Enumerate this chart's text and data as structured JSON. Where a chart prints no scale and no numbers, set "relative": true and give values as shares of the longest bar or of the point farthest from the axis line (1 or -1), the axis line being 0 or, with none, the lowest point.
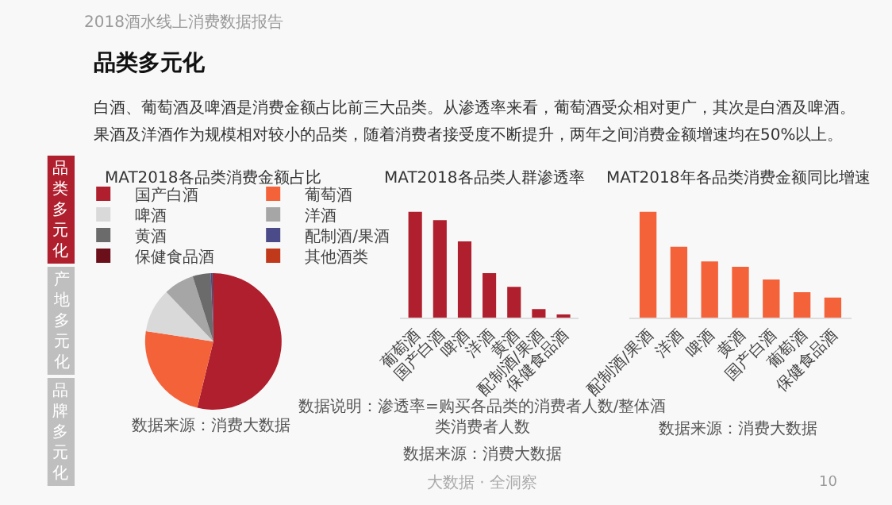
{
  "chart_data": [
    {
      "type": "pie",
      "title": "MAT2018各品类消费金额占比",
      "categories": [
        "国产白酒",
        "葡萄酒",
        "啤酒",
        "洋酒",
        "黄酒",
        "配制酒/果酒",
        "保健食品酒",
        "其他酒类"
      ],
      "values": [
        53.8,
        23.6,
        10.5,
        7.2,
        4.3,
        0.4,
        0.2,
        null
      ],
      "colors": [
        "#b01f2e",
        "#f4623a",
        "#d9d9d9",
        "#a6a6a6",
        "#6b6b6b",
        "#4b4b8a",
        "#6b0f1a",
        "#c0391b"
      ],
      "legend": "top",
      "annotations": [
        "2018酒水线上消费数据报告",
        "品类多元化",
        "白酒、葡萄酒及啤酒是消费金额占比前三大品类。从渗透率来看，葡萄酒受众相对更广，其次是白酒及啤酒。",
        "果酒及洋酒作为规模相对较小的品类，随着消费者接受度不断提升，两年之间消费金额增速均在50%以上。",
        "品类多元化",
        "产地多元化",
        "品牌多元化",
        "数据来源：消费大数据"
      ]
    },
    {
      "type": "bar",
      "title": "MAT2018各品类人群渗透率",
      "relative": true,
      "color": "#b01f2e",
      "categories": [
        "葡萄酒",
        "国产白酒",
        "啤酒",
        "洋酒",
        "黄酒",
        "配制酒/果酒",
        "保健食品酒"
      ],
      "values": [
        1,
        0.92,
        0.72,
        0.42,
        0.29,
        0.08,
        0.02
      ],
      "annotations": [
        "数据说明：渗透率=购买各品类的消费者人数/整体酒类消费者人数",
        "数据来源：消费大数据",
        "大数据 · 全洞察"
      ]
    },
    {
      "type": "bar",
      "title": "MAT2018年各品类消费金额同比增速",
      "relative": true,
      "color": "#f4623a",
      "categories": [
        "配制酒/果酒",
        "洋酒",
        "啤酒",
        "黄酒",
        "国产白酒",
        "葡萄酒",
        "保健食品酒"
      ],
      "values": [
        1,
        0.67,
        0.53,
        0.48,
        0.36,
        0.24,
        0.19
      ],
      "annotations": [
        "数据来源：消费大数据",
        "10"
      ]
    }
  ]
}
